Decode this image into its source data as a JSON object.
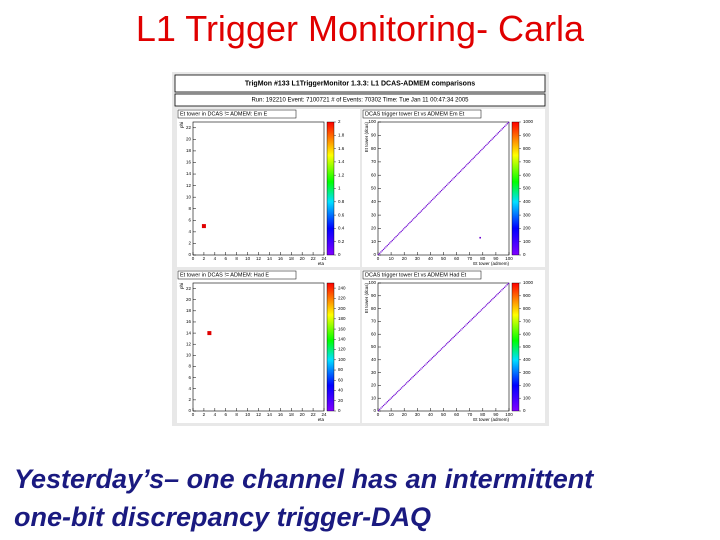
{
  "slide": {
    "title": "L1 Trigger Monitoring- Carla",
    "caption": [
      "Yesterday’s– one channel has an intermittent",
      "one-bit discrepancy trigger-DAQ"
    ]
  },
  "screenshot": {
    "header": "TrigMon #133 L1TriggerMonitor    1.3.3: L1 DCAS-ADMEM comparisons",
    "run_info": "Run: 192210 Event: 7100721 # of Events: 70302 Time: Tue Jan 11 00:47:34 2005",
    "panels": [
      {
        "title": "Et tower in DCAS != ADMEM: Em E",
        "xlabel": "eta",
        "ylabel": "phi",
        "xlim": [
          0,
          24
        ],
        "ylim": [
          0,
          23
        ],
        "xticks": [
          0,
          2,
          4,
          6,
          8,
          10,
          12,
          14,
          16,
          18,
          20,
          22,
          24
        ],
        "yticks": [
          0,
          2,
          4,
          6,
          8,
          10,
          12,
          14,
          16,
          18,
          20,
          22
        ],
        "zlim": [
          0,
          2
        ],
        "zticks": [
          0,
          0.2,
          0.4,
          0.6,
          0.8,
          1,
          1.2,
          1.4,
          1.6,
          1.8,
          2
        ],
        "points": [
          {
            "x": 2,
            "y": 5
          }
        ]
      },
      {
        "title": "DCAS trigger tower Et vs ADMEM Em Et",
        "xlabel": "Et tower (admem)",
        "ylabel": "Et tower (dcas)",
        "xlim": [
          0,
          100
        ],
        "ylim": [
          0,
          100
        ],
        "xticks": [
          0,
          10,
          20,
          30,
          40,
          50,
          60,
          70,
          80,
          90,
          100
        ],
        "yticks": [
          0,
          10,
          20,
          30,
          40,
          50,
          60,
          70,
          80,
          90,
          100
        ],
        "zlim": [
          0,
          1000
        ],
        "zticks": [
          0,
          100,
          200,
          300,
          400,
          500,
          600,
          700,
          800,
          900,
          1000
        ],
        "points": [
          {
            "x": 78,
            "y": 13
          }
        ]
      },
      {
        "title": "Et tower in DCAS != ADMEM: Had E",
        "xlabel": "eta",
        "ylabel": "phi",
        "xlim": [
          0,
          24
        ],
        "ylim": [
          0,
          23
        ],
        "xticks": [
          0,
          2,
          4,
          6,
          8,
          10,
          12,
          14,
          16,
          18,
          20,
          22,
          24
        ],
        "yticks": [
          0,
          2,
          4,
          6,
          8,
          10,
          12,
          14,
          16,
          18,
          20,
          22
        ],
        "zlim": [
          0,
          250
        ],
        "zticks": [
          0,
          20,
          40,
          60,
          80,
          100,
          120,
          140,
          160,
          180,
          200,
          220,
          240
        ],
        "points": [
          {
            "x": 3,
            "y": 14
          }
        ]
      },
      {
        "title": "DCAS trigger tower Et vs ADMEM Had Et",
        "xlabel": "Et tower (admem)",
        "ylabel": "Et tower (dcas)",
        "xlim": [
          0,
          100
        ],
        "ylim": [
          0,
          100
        ],
        "xticks": [
          0,
          10,
          20,
          30,
          40,
          50,
          60,
          70,
          80,
          90,
          100
        ],
        "yticks": [
          0,
          10,
          20,
          30,
          40,
          50,
          60,
          70,
          80,
          90,
          100
        ],
        "zlim": [
          0,
          1000
        ],
        "zticks": [
          0,
          100,
          200,
          300,
          400,
          500,
          600,
          700,
          800,
          900,
          1000
        ],
        "points": []
      }
    ]
  }
}
